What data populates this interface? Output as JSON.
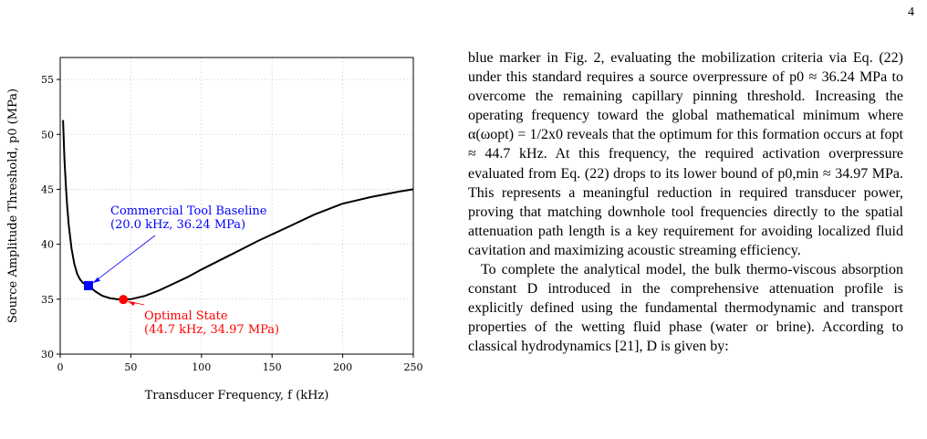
{
  "page": {
    "number": "4"
  },
  "figure": {
    "chart_data": {
      "type": "line",
      "xlabel": "Transducer Frequency, f (kHz)",
      "ylabel": "Source Amplitude Threshold, p0 (MPa)",
      "xlim": [
        0,
        250
      ],
      "ylim": [
        30,
        57
      ],
      "xticks": [
        0,
        50,
        100,
        150,
        200,
        250
      ],
      "yticks": [
        30,
        35,
        40,
        45,
        50,
        55
      ],
      "grid": true,
      "series": [
        {
          "x": [
            2,
            3,
            4,
            5,
            6,
            8,
            10,
            12,
            14,
            16,
            18,
            20,
            22,
            25,
            28,
            30,
            35,
            40,
            44.7,
            50,
            60,
            70,
            80,
            90,
            100,
            120,
            140,
            160,
            180,
            200,
            220,
            240,
            250
          ],
          "values": [
            51.3,
            47.8,
            45.3,
            43.4,
            41.8,
            39.6,
            38.2,
            37.3,
            36.8,
            36.5,
            36.35,
            36.24,
            36.0,
            35.7,
            35.45,
            35.3,
            35.1,
            35.0,
            34.97,
            35.0,
            35.3,
            35.8,
            36.4,
            37.0,
            37.7,
            39.0,
            40.3,
            41.5,
            42.7,
            43.7,
            44.3,
            44.8,
            45.0
          ],
          "color": "#000000"
        }
      ],
      "markers": [
        {
          "x": 20.0,
          "y": 36.24,
          "shape": "square",
          "color": "#0000ff"
        },
        {
          "x": 44.7,
          "y": 34.97,
          "shape": "circle",
          "color": "#ff0000"
        }
      ],
      "annotations": [
        {
          "lines": [
            "Commercial Tool Baseline",
            "(20.0 kHz, 36.24 MPa)"
          ],
          "color": "#0000ff",
          "x": 20.0,
          "y": 36.24
        },
        {
          "lines": [
            "Optimal State",
            "(44.7 kHz, 34.97 MPa)"
          ],
          "color": "#ff0000",
          "x": 44.7,
          "y": 34.97
        }
      ]
    }
  },
  "text": {
    "p1": "blue marker in Fig. 2, evaluating the mobilization criteria via Eq. (22) under this standard requires a source overpressure of p0 ≈ 36.24 MPa to overcome the remaining capillary pinning threshold. Increasing the operating frequency toward the global mathematical minimum where α(ωopt) = 1/2x0 reveals that the optimum for this formation occurs at fopt ≈ 44.7 kHz. At this frequency, the required activation overpressure evaluated from Eq. (22) drops to its lower bound of p0,min ≈ 34.97 MPa. This represents a meaningful reduction in required transducer power, proving that matching downhole tool frequencies directly to the spatial attenuation path length is a key requirement for avoiding localized fluid cavitation and maximizing acoustic streaming efficiency.",
    "p2": "To complete the analytical model, the bulk thermo-viscous absorption constant D introduced in the comprehensive attenuation profile is explicitly defined using the fundamental thermodynamic and transport properties of the wetting fluid phase (water or brine). According to classical hydrodynamics [21], D is given by:"
  }
}
